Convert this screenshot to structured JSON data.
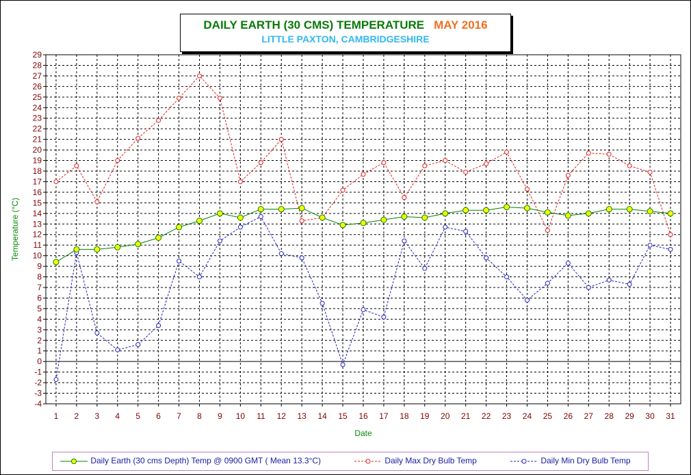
{
  "title": {
    "main": "DAILY EARTH (30 CMS) TEMPERATURE",
    "month": "MAY 2016",
    "subtitle": "LITTLE PAXTON, CAMBRIDGESHIRE"
  },
  "colors": {
    "earth": "#008000",
    "earth_marker": "#ffff00",
    "max": "#e02020",
    "min": "#2020c0",
    "grid": "#000000",
    "tick": "#800000",
    "axis_label": "#0a8a0a"
  },
  "chart_data": {
    "type": "line",
    "xlabel": "Date",
    "ylabel": "Temperature (°C)",
    "ylim": [
      -4,
      29
    ],
    "x": [
      1,
      2,
      3,
      4,
      5,
      6,
      7,
      8,
      9,
      10,
      11,
      12,
      13,
      14,
      15,
      16,
      17,
      18,
      19,
      20,
      21,
      22,
      23,
      24,
      25,
      26,
      27,
      28,
      29,
      30,
      31
    ],
    "y_ticks": [
      29,
      28,
      27,
      26,
      25,
      24,
      23,
      22,
      21,
      20,
      19,
      18,
      17,
      16,
      15,
      14,
      13,
      12,
      11,
      10,
      9,
      8,
      7,
      6,
      5,
      4,
      3,
      2,
      1,
      0,
      -1,
      -2,
      -3,
      -4
    ],
    "grid": true,
    "legend_position": "bottom",
    "series": [
      {
        "name": "Daily Earth (30 cms Depth) Temp @ 0900 GMT ( Mean 13.3°C)",
        "values": [
          9.4,
          10.6,
          10.6,
          10.8,
          11.1,
          11.7,
          12.7,
          13.3,
          14.0,
          13.6,
          14.4,
          14.4,
          14.5,
          13.6,
          12.9,
          13.1,
          13.4,
          13.7,
          13.6,
          14.0,
          14.3,
          14.3,
          14.6,
          14.5,
          14.1,
          13.8,
          14.0,
          14.4,
          14.4,
          14.2,
          14.0
        ]
      },
      {
        "name": "Daily Max Dry Bulb Temp",
        "values": [
          17.0,
          18.5,
          15.1,
          19.0,
          21.1,
          22.8,
          24.9,
          27.0,
          24.9,
          17.0,
          18.8,
          21.0,
          13.3,
          13.6,
          16.2,
          17.7,
          18.8,
          15.5,
          18.5,
          19.0,
          17.9,
          18.7,
          19.8,
          16.3,
          12.4,
          17.6,
          19.7,
          19.6,
          18.5,
          17.9,
          12.0
        ]
      },
      {
        "name": "Daily Min Dry Bulb Temp",
        "values": [
          -1.7,
          10.3,
          2.7,
          1.1,
          1.6,
          3.4,
          9.5,
          8.0,
          11.4,
          12.7,
          13.7,
          10.2,
          9.8,
          5.5,
          -0.3,
          4.9,
          4.2,
          11.4,
          8.8,
          12.7,
          12.3,
          9.8,
          8.0,
          5.8,
          7.4,
          9.3,
          7.0,
          7.7,
          7.3,
          11.0,
          10.6
        ]
      }
    ]
  }
}
